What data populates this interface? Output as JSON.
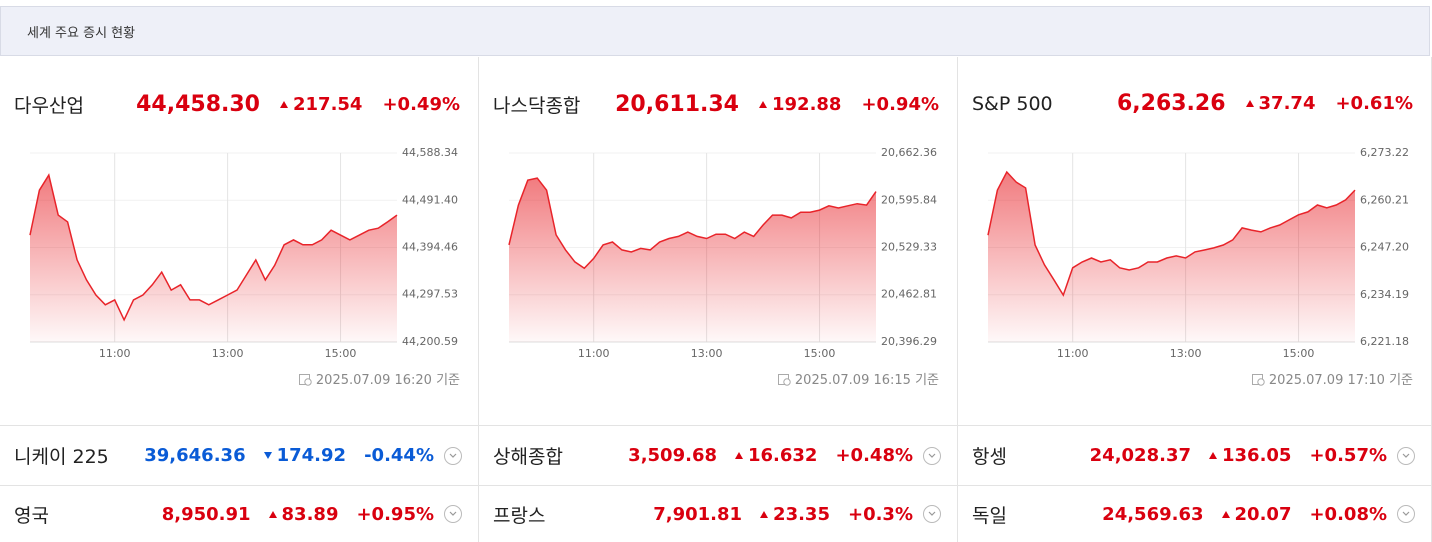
{
  "header": {
    "title": "세계 주요 증시 현황"
  },
  "panels": [
    {
      "name": "다우산업",
      "price": "44,458.30",
      "change": "217.54",
      "rate": "+0.49%",
      "direction": "up",
      "timestamp": "2025.07.09 16:20 기준"
    },
    {
      "name": "나스닥종합",
      "price": "20,611.34",
      "change": "192.88",
      "rate": "+0.94%",
      "direction": "up",
      "timestamp": "2025.07.09 16:15 기준"
    },
    {
      "name": "S&P 500",
      "price": "6,263.26",
      "change": "37.74",
      "rate": "+0.61%",
      "direction": "up",
      "timestamp": "2025.07.09 17:10 기준"
    }
  ],
  "chart_data": [
    {
      "type": "area",
      "color": "#e8242a",
      "x": [
        "09:30",
        "09:40",
        "09:50",
        "10:00",
        "10:10",
        "10:20",
        "10:30",
        "10:40",
        "10:50",
        "11:00",
        "11:10",
        "11:20",
        "11:30",
        "11:40",
        "11:50",
        "12:00",
        "12:10",
        "12:20",
        "12:30",
        "12:40",
        "12:50",
        "13:00",
        "13:10",
        "13:20",
        "13:30",
        "13:40",
        "13:50",
        "14:00",
        "14:10",
        "14:20",
        "14:30",
        "14:40",
        "14:50",
        "15:00",
        "15:10",
        "15:20",
        "15:30",
        "15:40",
        "15:50",
        "16:00"
      ],
      "values": [
        44420,
        44512,
        44543,
        44461,
        44447,
        44369,
        44328,
        44297,
        44277,
        44287,
        44246,
        44287,
        44297,
        44318,
        44344,
        44307,
        44318,
        44287,
        44287,
        44277,
        44287,
        44297,
        44307,
        44338,
        44369,
        44328,
        44358,
        44400,
        44410,
        44400,
        44400,
        44410,
        44430,
        44420,
        44410,
        44420,
        44430,
        44434,
        44447,
        44461
      ],
      "xlim": [
        "09:30",
        "16:00"
      ],
      "xticks": [
        "11:00",
        "13:00",
        "15:00"
      ],
      "ylim": [
        44200.59,
        44588.34
      ],
      "yticks": [
        {
          "value": 44200.59,
          "label": "44,200.59"
        },
        {
          "value": 44297.53,
          "label": "44,297.53"
        },
        {
          "value": 44394.46,
          "label": "44,394.46"
        },
        {
          "value": 44491.4,
          "label": "44,491.40"
        },
        {
          "value": 44588.34,
          "label": "44,588.34"
        }
      ]
    },
    {
      "type": "area",
      "color": "#e8242a",
      "x": [
        "09:30",
        "09:40",
        "09:50",
        "10:00",
        "10:10",
        "10:20",
        "10:30",
        "10:40",
        "10:50",
        "11:00",
        "11:10",
        "11:20",
        "11:30",
        "11:40",
        "11:50",
        "12:00",
        "12:10",
        "12:20",
        "12:30",
        "12:40",
        "12:50",
        "13:00",
        "13:10",
        "13:20",
        "13:30",
        "13:40",
        "13:50",
        "14:00",
        "14:10",
        "14:20",
        "14:30",
        "14:40",
        "14:50",
        "15:00",
        "15:10",
        "15:20",
        "15:30",
        "15:40",
        "15:50",
        "16:00"
      ],
      "values": [
        20533,
        20589,
        20624,
        20627,
        20610,
        20547,
        20526,
        20509,
        20500,
        20514,
        20533,
        20537,
        20526,
        20523,
        20528,
        20526,
        20537,
        20542,
        20545,
        20551,
        20545,
        20542,
        20548,
        20548,
        20542,
        20551,
        20545,
        20561,
        20575,
        20575,
        20571,
        20579,
        20579,
        20582,
        20588,
        20585,
        20588,
        20591,
        20589,
        20608
      ],
      "xlim": [
        "09:30",
        "16:00"
      ],
      "xticks": [
        "11:00",
        "13:00",
        "15:00"
      ],
      "ylim": [
        20396.29,
        20662.36
      ],
      "yticks": [
        {
          "value": 20396.29,
          "label": "20,396.29"
        },
        {
          "value": 20462.81,
          "label": "20,462.81"
        },
        {
          "value": 20529.33,
          "label": "20,529.33"
        },
        {
          "value": 20595.84,
          "label": "20,595.84"
        },
        {
          "value": 20662.36,
          "label": "20,662.36"
        }
      ]
    },
    {
      "type": "area",
      "color": "#e8242a",
      "x": [
        "09:30",
        "09:40",
        "09:50",
        "10:00",
        "10:10",
        "10:20",
        "10:30",
        "10:40",
        "10:50",
        "11:00",
        "11:10",
        "11:20",
        "11:30",
        "11:40",
        "11:50",
        "12:00",
        "12:10",
        "12:20",
        "12:30",
        "12:40",
        "12:50",
        "13:00",
        "13:10",
        "13:20",
        "13:30",
        "13:40",
        "13:50",
        "14:00",
        "14:10",
        "14:20",
        "14:30",
        "14:40",
        "14:50",
        "15:00",
        "15:10",
        "15:20",
        "15:30",
        "15:40",
        "15:50",
        "16:00"
      ],
      "values": [
        6250.6,
        6263.0,
        6268.0,
        6265.2,
        6263.6,
        6247.9,
        6242.4,
        6238.3,
        6234.1,
        6241.6,
        6243.2,
        6244.3,
        6243.2,
        6243.8,
        6241.6,
        6241.0,
        6241.6,
        6243.2,
        6243.2,
        6244.3,
        6244.9,
        6244.3,
        6246.0,
        6246.5,
        6247.1,
        6247.9,
        6249.3,
        6252.6,
        6252.0,
        6251.5,
        6252.6,
        6253.4,
        6254.8,
        6256.2,
        6257.0,
        6258.9,
        6258.1,
        6258.9,
        6260.3,
        6263.0
      ],
      "xlim": [
        "09:30",
        "16:00"
      ],
      "xticks": [
        "11:00",
        "13:00",
        "15:00"
      ],
      "ylim": [
        6221.18,
        6273.22
      ],
      "yticks": [
        {
          "value": 6221.18,
          "label": "6,221.18"
        },
        {
          "value": 6234.19,
          "label": "6,234.19"
        },
        {
          "value": 6247.2,
          "label": "6,247.20"
        },
        {
          "value": 6260.21,
          "label": "6,260.21"
        },
        {
          "value": 6273.22,
          "label": "6,273.22"
        }
      ]
    }
  ],
  "rows": [
    [
      {
        "name": "니케이 225",
        "price": "39,646.36",
        "change": "174.92",
        "rate": "-0.44%",
        "direction": "down"
      },
      {
        "name": "상해종합",
        "price": "3,509.68",
        "change": "16.632",
        "rate": "+0.48%",
        "direction": "up"
      },
      {
        "name": "항셍",
        "price": "24,028.37",
        "change": "136.05",
        "rate": "+0.57%",
        "direction": "up"
      }
    ],
    [
      {
        "name": "영국",
        "price": "8,950.91",
        "change": "83.89",
        "rate": "+0.95%",
        "direction": "up"
      },
      {
        "name": "프랑스",
        "price": "7,901.81",
        "change": "23.35",
        "rate": "+0.3%",
        "direction": "up"
      },
      {
        "name": "독일",
        "price": "24,569.63",
        "change": "20.07",
        "rate": "+0.08%",
        "direction": "up"
      }
    ]
  ]
}
